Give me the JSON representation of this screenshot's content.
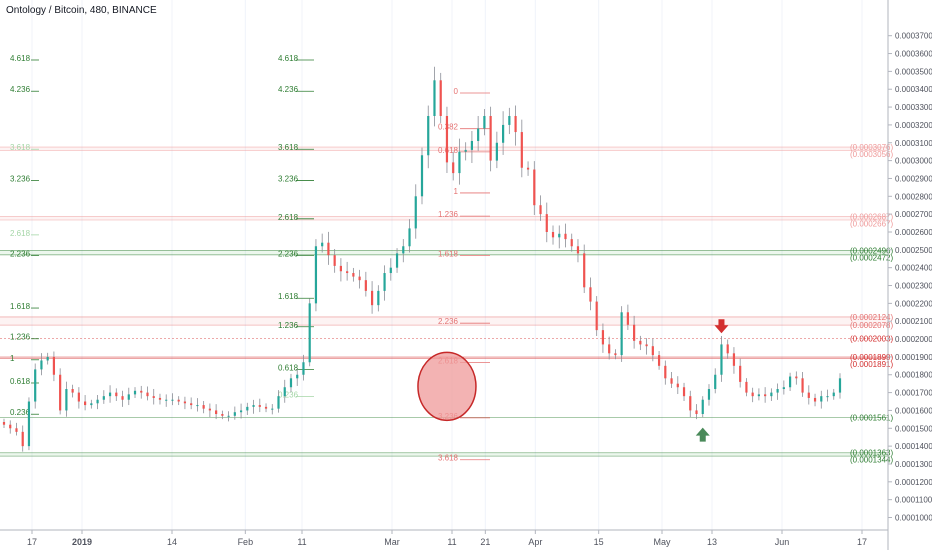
{
  "chart_data": {
    "type": "candlestick",
    "title": "Ontology / Bitcoin, 480, BINANCE",
    "price_axis": {
      "ylim": [
        9.3e-05,
        0.00039
      ],
      "ticks": [
        "0.0003700",
        "0.0003600",
        "0.0003500",
        "0.0003400",
        "0.0003300",
        "0.0003200",
        "0.0003100",
        "0.0003000",
        "0.0002900",
        "0.0002800",
        "0.0002700",
        "0.0002600",
        "0.0002500",
        "0.0002400",
        "0.0002300",
        "0.0002200",
        "0.0002100",
        "0.0002000",
        "0.0001900",
        "0.0001800",
        "0.0001700",
        "0.0001600",
        "0.0001500",
        "0.0001400",
        "0.0001300",
        "0.0001200",
        "0.0001100",
        "0.0001000"
      ]
    },
    "time_axis": {
      "labels": [
        "17",
        "2019",
        "14",
        "Feb",
        "11",
        "Mar",
        "11",
        "21",
        "Apr",
        "15",
        "May",
        "13",
        "Jun",
        "17"
      ],
      "label_positions_day": [
        0,
        15,
        42,
        64,
        81,
        108,
        126,
        136,
        151,
        170,
        189,
        204,
        225,
        249
      ]
    },
    "candles_close": [
      0.000152,
      0.00015,
      0.000148,
      0.00014,
      0.000165,
      0.000183,
      0.000188,
      0.00019,
      0.00018,
      0.00016,
      0.000172,
      0.00017,
      0.000165,
      0.000163,
      0.000164,
      0.000166,
      0.000168,
      0.00017,
      0.000168,
      0.000166,
      0.000169,
      0.000171,
      0.00017,
      0.000168,
      0.000167,
      0.000166,
      0.000166,
      0.000166,
      0.000165,
      0.000164,
      0.000163,
      0.000163,
      0.000161,
      0.00016,
      0.000158,
      0.000157,
      0.000157,
      0.000159,
      0.00016,
      0.000162,
      0.000163,
      0.000162,
      0.000161,
      0.000161,
      0.000168,
      0.000173,
      0.000178,
      0.00018,
      0.000187,
      0.00022,
      0.000252,
      0.000254,
      0.000247,
      0.000241,
      0.000238,
      0.000237,
      0.000235,
      0.000233,
      0.000227,
      0.000219,
      0.000227,
      0.000237,
      0.00024,
      0.000248,
      0.000252,
      0.000262,
      0.00028,
      0.000303,
      0.000325,
      0.000345,
      0.000325,
      0.000299,
      0.000293,
      0.000305,
      0.000306,
      0.000311,
      0.000318,
      0.000325,
      0.0003,
      0.00031,
      0.00032,
      0.000325,
      0.000316,
      0.000296,
      0.000295,
      0.000275,
      0.00027,
      0.00026,
      0.000257,
      0.000259,
      0.000256,
      0.000252,
      0.000248,
      0.000229,
      0.000221,
      0.000205,
      0.000197,
      0.000192,
      0.000191,
      0.000215,
      0.000208,
      0.000199,
      0.000197,
      0.000196,
      0.000191,
      0.000185,
      0.000178,
      0.000175,
      0.000173,
      0.000168,
      0.00016,
      0.000158,
      0.000166,
      0.000172,
      0.00018,
      0.000197,
      0.000192,
      0.000185,
      0.000176,
      0.00017,
      0.000168,
      0.000169,
      0.000168,
      0.00017,
      0.000172,
      0.000173,
      0.000179,
      0.000178,
      0.00017,
      0.000167,
      0.000165,
      0.000168,
      0.000168,
      0.00017,
      0.000178
    ],
    "levels": [
      {
        "price": 0.0003076,
        "label": "(0.0003076)",
        "color": "#ef9a9a"
      },
      {
        "price": 0.0003056,
        "label": "(0.0003056)",
        "color": "#ef9a9a"
      },
      {
        "price": 0.0002687,
        "label": "(0.0002687)",
        "color": "#ef9a9a"
      },
      {
        "price": 0.0002667,
        "label": "(0.0002667)",
        "color": "#ef9a9a"
      },
      {
        "price": 0.0002496,
        "label": "(0.0002496)",
        "color": "#2e7d32"
      },
      {
        "price": 0.0002472,
        "label": "(0.0002472)",
        "color": "#2e7d32"
      },
      {
        "price": 0.0002124,
        "label": "(0.0002124)",
        "color": "#e57373"
      },
      {
        "price": 0.0002078,
        "label": "(0.0002078)",
        "color": "#e57373"
      },
      {
        "price": 0.0002003,
        "label": "(0.0002003)",
        "color": "#d32f2f"
      },
      {
        "price": 0.0001899,
        "label": "(0.0001899)",
        "color": "#d32f2f"
      },
      {
        "price": 0.0001891,
        "label": "(0.0001891)",
        "color": "#d32f2f"
      },
      {
        "price": 0.0001561,
        "label": "(0.0001561)",
        "color": "#2e7d32"
      },
      {
        "price": 0.0001363,
        "label": "(0.0001363)",
        "color": "#2e7d32"
      },
      {
        "price": 0.0001344,
        "label": "(0.0001344)",
        "color": "#2e7d32"
      }
    ],
    "fib_left": [
      {
        "label": "4.618",
        "price": 0.0003575,
        "color": "#2e7d32"
      },
      {
        "label": "4.236",
        "price": 0.00034,
        "color": "#2e7d32"
      },
      {
        "label": "3.618",
        "price": 0.0003075,
        "color": "#a5d6a7"
      },
      {
        "label": "3.236",
        "price": 0.00029,
        "color": "#2e7d32"
      },
      {
        "label": "2.618",
        "price": 0.0002595,
        "color": "#a5d6a7"
      },
      {
        "label": "2.236",
        "price": 0.000248,
        "color": "#2e7d32"
      },
      {
        "label": "1.618",
        "price": 0.0002185,
        "color": "#2e7d32"
      },
      {
        "label": "1.236",
        "price": 0.0002013,
        "color": "#2e7d32"
      },
      {
        "label": "1",
        "price": 0.0001895,
        "color": "#2e7d32"
      },
      {
        "label": "0.618",
        "price": 0.0001765,
        "color": "#2e7d32"
      },
      {
        "label": "0.236",
        "price": 0.000159,
        "color": "#2e7d32"
      }
    ],
    "fib_mid": [
      {
        "label": "4.618",
        "price": 0.0003575,
        "color": "#2e7d32"
      },
      {
        "label": "4.236",
        "price": 0.00034,
        "color": "#2e7d32"
      },
      {
        "label": "3.618",
        "price": 0.0003075,
        "color": "#2e7d32"
      },
      {
        "label": "3.236",
        "price": 0.00029,
        "color": "#2e7d32"
      },
      {
        "label": "2.618",
        "price": 0.0002685,
        "color": "#2e7d32"
      },
      {
        "label": "2.236",
        "price": 0.000248,
        "color": "#2e7d32"
      },
      {
        "label": "1.618",
        "price": 0.000224,
        "color": "#2e7d32"
      },
      {
        "label": "1.236",
        "price": 0.000208,
        "color": "#2e7d32"
      },
      {
        "label": "0.618",
        "price": 0.000184,
        "color": "#2e7d32"
      },
      {
        "label": "0.236",
        "price": 0.000169,
        "color": "#a5d6a7"
      }
    ],
    "fib_right": [
      {
        "label": "0",
        "price": 0.000339,
        "color": "#e57373"
      },
      {
        "label": "0.382",
        "price": 0.000319,
        "color": "#e57373"
      },
      {
        "label": "0.618",
        "price": 0.000306,
        "color": "#e57373"
      },
      {
        "label": "1",
        "price": 0.000283,
        "color": "#e57373"
      },
      {
        "label": "1.236",
        "price": 0.00027,
        "color": "#e57373"
      },
      {
        "label": "1.618",
        "price": 0.000248,
        "color": "#e57373"
      },
      {
        "label": "2.236",
        "price": 0.00021,
        "color": "#e57373"
      },
      {
        "label": "2.618",
        "price": 0.000188,
        "color": "#e57373"
      },
      {
        "label": "3.236",
        "price": 0.000157,
        "color": "#e57373"
      },
      {
        "label": "3.618",
        "price": 0.0001335,
        "color": "#e57373"
      }
    ],
    "annotations": [
      {
        "kind": "circle",
        "color": "#ef9a9a"
      },
      {
        "kind": "arrow-down",
        "color": "#d32f2f"
      },
      {
        "kind": "arrow-up",
        "color": "#4a8a5a"
      }
    ],
    "colors": {
      "up": "#26a69a",
      "down": "#ef5350",
      "grid": "#e0e3eb",
      "axis_text": "#50535e"
    }
  }
}
